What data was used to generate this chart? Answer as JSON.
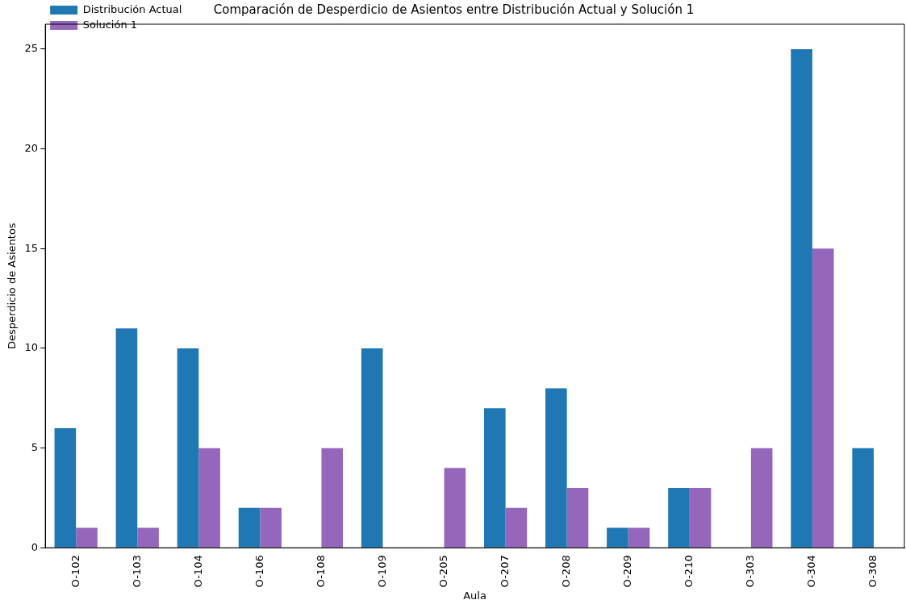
{
  "chart_data": {
    "type": "bar",
    "title": "Comparación de Desperdicio de Asientos entre Distribución Actual y Solución 1",
    "xlabel": "Aula",
    "ylabel": "Desperdicio de Asientos",
    "categories": [
      "O-102",
      "O-103",
      "O-104",
      "O-106",
      "O-108",
      "O-109",
      "O-205",
      "O-207",
      "O-208",
      "O-209",
      "O-210",
      "O-303",
      "O-304",
      "O-308"
    ],
    "series": [
      {
        "name": "Distribución Actual",
        "color": "#1f77b4",
        "values": [
          6,
          11,
          10,
          2,
          0,
          10,
          0,
          7,
          8,
          1,
          3,
          0,
          25,
          5
        ]
      },
      {
        "name": "Solución 1",
        "color": "#9467bd",
        "values": [
          1,
          1,
          5,
          2,
          5,
          0,
          4,
          2,
          3,
          1,
          3,
          5,
          15,
          0
        ]
      }
    ],
    "ylim": [
      0,
      26.25
    ],
    "yticks": [
      0,
      5,
      10,
      15,
      20,
      25
    ],
    "grid": false,
    "legend": "top left"
  }
}
